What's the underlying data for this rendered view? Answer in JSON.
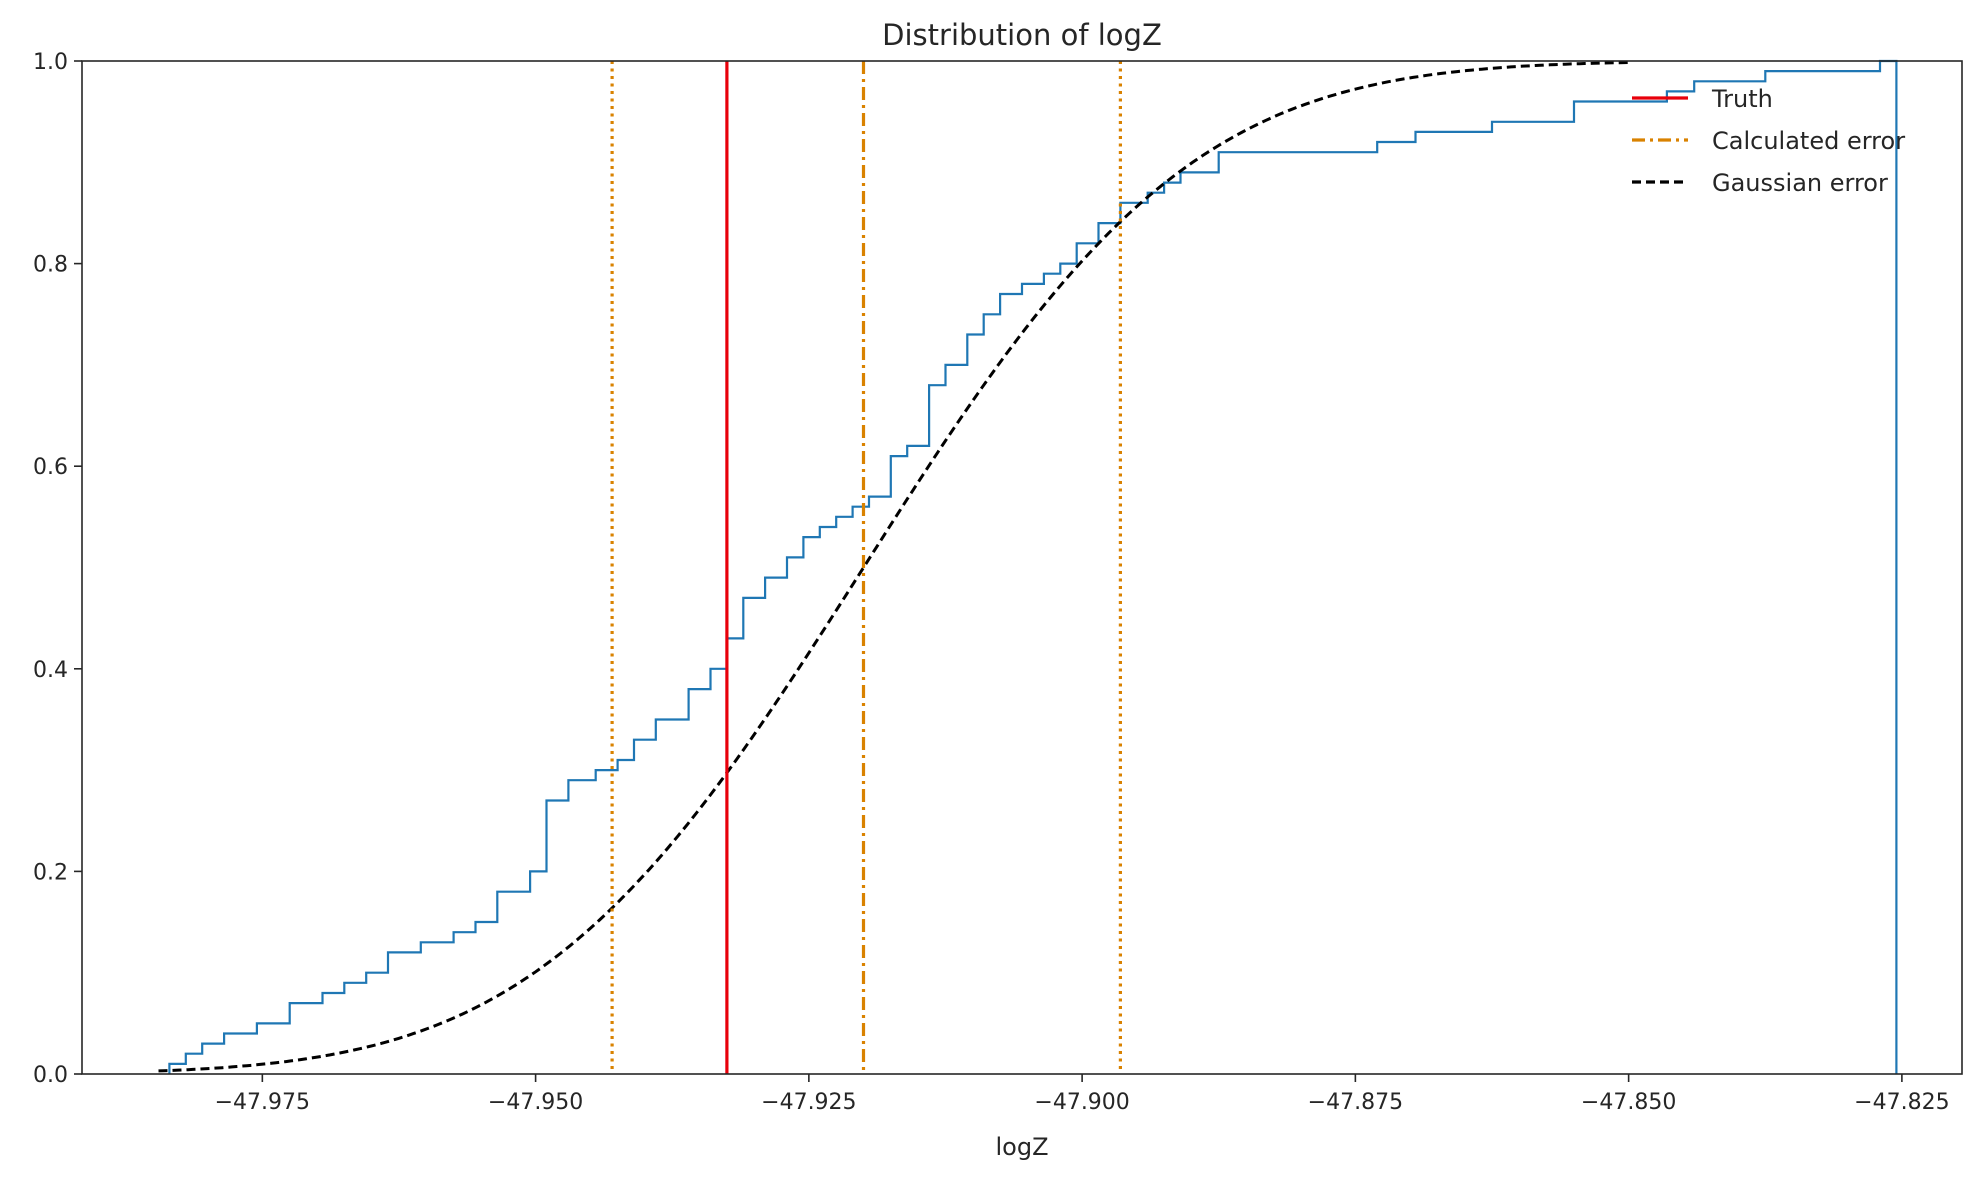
{
  "chart_data": {
    "type": "line",
    "title": "Distribution of logZ",
    "xlabel": "logZ",
    "ylabel": "",
    "xlim": [
      -47.9915,
      -47.8195
    ],
    "ylim": [
      0,
      1
    ],
    "xticks": [
      -47.975,
      -47.95,
      -47.925,
      -47.9,
      -47.875,
      -47.85,
      -47.825
    ],
    "xtick_labels": [
      "−47.975",
      "−47.950",
      "−47.925",
      "−47.900",
      "−47.875",
      "−47.850",
      "−47.825"
    ],
    "yticks": [
      0,
      0.2,
      0.4,
      0.6,
      0.8,
      1.0
    ],
    "ytick_labels": [
      "0.0",
      "0.2",
      "0.4",
      "0.6",
      "0.8",
      "1.0"
    ],
    "grid": false,
    "legend_position": "top-right",
    "colors": {
      "ecdf": "#1f77b4",
      "truth": "#e8000b",
      "calculated": "#d98200",
      "gaussian": "#000000",
      "axes": "#262626"
    },
    "series": [
      {
        "kind": "ecdf-step",
        "color": "#1f77b4",
        "x": [
          -47.9835,
          -47.982,
          -47.9805,
          -47.9785,
          -47.9755,
          -47.9725,
          -47.9695,
          -47.9675,
          -47.9655,
          -47.9635,
          -47.9605,
          -47.9575,
          -47.9555,
          -47.9535,
          -47.9505,
          -47.949,
          -47.947,
          -47.9445,
          -47.9425,
          -47.941,
          -47.939,
          -47.936,
          -47.934,
          -47.9325,
          -47.931,
          -47.929,
          -47.927,
          -47.9255,
          -47.924,
          -47.9225,
          -47.921,
          -47.9195,
          -47.9175,
          -47.916,
          -47.914,
          -47.9125,
          -47.9105,
          -47.909,
          -47.9075,
          -47.9055,
          -47.9035,
          -47.902,
          -47.9005,
          -47.8985,
          -47.8965,
          -47.894,
          -47.8925,
          -47.891,
          -47.8895,
          -47.8875,
          -47.8855,
          -47.873,
          -47.8695,
          -47.8625,
          -47.855,
          -47.8465,
          -47.845,
          -47.844,
          -47.8375,
          -47.827,
          -47.8255,
          -47.8255
        ],
        "y": [
          0.01,
          0.02,
          0.03,
          0.04,
          0.05,
          0.07,
          0.08,
          0.09,
          0.1,
          0.12,
          0.13,
          0.14,
          0.15,
          0.18,
          0.2,
          0.27,
          0.29,
          0.3,
          0.31,
          0.33,
          0.35,
          0.38,
          0.4,
          0.43,
          0.47,
          0.49,
          0.51,
          0.53,
          0.54,
          0.55,
          0.56,
          0.57,
          0.61,
          0.62,
          0.68,
          0.7,
          0.73,
          0.75,
          0.77,
          0.78,
          0.79,
          0.8,
          0.82,
          0.84,
          0.86,
          0.87,
          0.88,
          0.89,
          0.89,
          0.91,
          0.91,
          0.92,
          0.93,
          0.94,
          0.96,
          0.97,
          0.97,
          0.98,
          0.99,
          1.0,
          1.0,
          0.0
        ]
      },
      {
        "name": "Truth",
        "kind": "vline",
        "x": -47.9325,
        "color": "#e8000b",
        "style": "solid"
      },
      {
        "name": "Calculated error",
        "kind": "vline",
        "x": -47.92,
        "color": "#d98200",
        "style": "dashdot"
      },
      {
        "kind": "vline",
        "x": -47.943,
        "color": "#d98200",
        "style": "dotted"
      },
      {
        "kind": "vline",
        "x": -47.8965,
        "color": "#d98200",
        "style": "dotted"
      },
      {
        "name": "Gaussian error",
        "kind": "normal-cdf",
        "mean": -47.92,
        "sigma": 0.0235,
        "x_range": [
          -47.9845,
          -47.85
        ],
        "color": "#000000",
        "style": "dashed"
      }
    ]
  }
}
